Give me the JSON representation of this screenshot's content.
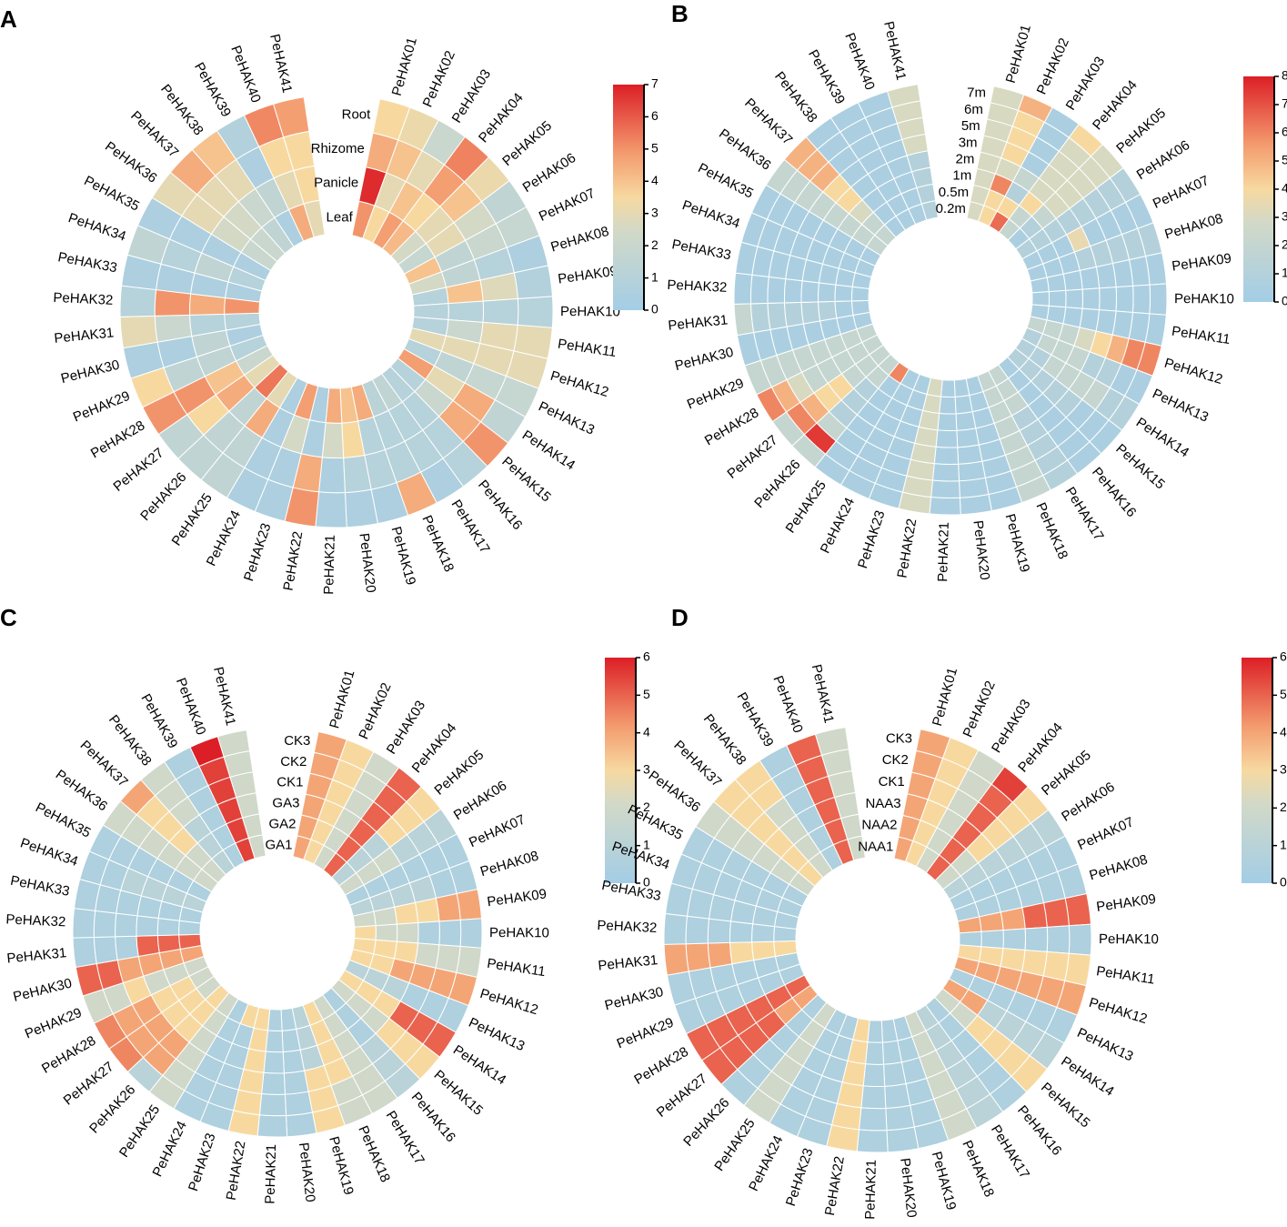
{
  "colors": {
    "low": "#a3cde6",
    "mid": "#f7f7c5",
    "mid2": "#f6cc8f",
    "high": "#dc1f26",
    "cell_stroke": "#ffffff"
  },
  "genes": [
    "PeHAK01",
    "PeHAK02",
    "PeHAK03",
    "PeHAK04",
    "PeHAK05",
    "PeHAK06",
    "PeHAK07",
    "PeHAK08",
    "PeHAK09",
    "PeHAK10",
    "PeHAK11",
    "PeHAK12",
    "PeHAK13",
    "PeHAK14",
    "PeHAK15",
    "PeHAK16",
    "PeHAK17",
    "PeHAK18",
    "PeHAK19",
    "PeHAK20",
    "PeHAK21",
    "PeHAK22",
    "PeHAK23",
    "PeHAK24",
    "PeHAK25",
    "PeHAK26",
    "PeHAK27",
    "PeHAK28",
    "PeHAK29",
    "PeHAK30",
    "PeHAK31",
    "PeHAK32",
    "PeHAK33",
    "PeHAK34",
    "PeHAK35",
    "PeHAK36",
    "PeHAK37",
    "PeHAK38",
    "PeHAK39",
    "PeHAK40",
    "PeHAK41"
  ],
  "chart_data": [
    {
      "type": "heatmap",
      "panel": "A",
      "rings": [
        "Root",
        "Rhizome",
        "Panicle",
        "Leaf"
      ],
      "scale": {
        "min": 0,
        "max": 7,
        "ticks": [
          0,
          1,
          2,
          3,
          4,
          5,
          6,
          7
        ]
      },
      "values": [
        [
          3.5,
          4.5,
          6.8,
          5.0
        ],
        [
          3.2,
          4.0,
          3.0,
          3.5
        ],
        [
          2.0,
          3.0,
          4.0,
          4.8
        ],
        [
          5.3,
          4.8,
          3.5,
          4.2
        ],
        [
          3.2,
          4.0,
          3.0,
          2.5
        ],
        [
          1.5,
          2.5,
          3.0,
          1.8
        ],
        [
          1.8,
          2.0,
          1.5,
          4.0
        ],
        [
          0.5,
          1.0,
          1.5,
          2.5
        ],
        [
          0.8,
          2.8,
          4.0,
          1.0
        ],
        [
          1.0,
          1.0,
          1.0,
          1.0
        ],
        [
          3.0,
          3.0,
          2.0,
          1.0
        ],
        [
          3.0,
          3.0,
          3.0,
          3.0
        ],
        [
          1.8,
          1.8,
          1.5,
          1.0
        ],
        [
          1.5,
          4.5,
          3.0,
          4.8
        ],
        [
          5.0,
          4.5,
          2.0,
          1.0
        ],
        [
          1.0,
          1.0,
          1.0,
          1.0
        ],
        [
          0.5,
          1.0,
          1.0,
          1.5
        ],
        [
          4.5,
          1.0,
          1.0,
          1.2
        ],
        [
          0.5,
          1.0,
          1.0,
          4.5
        ],
        [
          0.5,
          1.0,
          3.5,
          4.0
        ],
        [
          0.5,
          0.5,
          2.5,
          4.5
        ],
        [
          5.0,
          4.5,
          0.5,
          0.5
        ],
        [
          0.5,
          0.5,
          2.5,
          4.8
        ],
        [
          0.5,
          0.5,
          0.5,
          0.5
        ],
        [
          1.5,
          1.5,
          4.5,
          3.0
        ],
        [
          1.5,
          1.5,
          1.5,
          5.5
        ],
        [
          1.5,
          3.5,
          4.5,
          3.0
        ],
        [
          5.0,
          5.0,
          4.0,
          2.0
        ],
        [
          3.5,
          1.5,
          1.5,
          1.0
        ],
        [
          0.5,
          0.5,
          1.5,
          0.5
        ],
        [
          3.0,
          2.0,
          1.0,
          1.0
        ],
        [
          1.0,
          5.0,
          4.5,
          5.0
        ],
        [
          0.5,
          0.5,
          0.5,
          0.5
        ],
        [
          1.5,
          1.0,
          1.5,
          1.0
        ],
        [
          0.5,
          0.5,
          0.5,
          0.5
        ],
        [
          3.0,
          3.0,
          2.5,
          2.0
        ],
        [
          4.5,
          3.0,
          2.5,
          2.0
        ],
        [
          4.0,
          3.0,
          2.0,
          1.5
        ],
        [
          0.8,
          0.5,
          1.5,
          0.5
        ],
        [
          5.2,
          3.5,
          3.0,
          4.5
        ],
        [
          4.8,
          3.5,
          3.5,
          3.0
        ]
      ]
    },
    {
      "type": "heatmap",
      "panel": "B",
      "rings": [
        "7m",
        "6m",
        "5m",
        "3m",
        "2m",
        "1m",
        "0.5m",
        "0.2m"
      ],
      "scale": {
        "min": 0,
        "max": 8,
        "ticks": [
          0,
          1,
          2,
          3,
          4,
          5,
          6,
          7,
          8
        ]
      },
      "values": [
        [
          3,
          3,
          3,
          3,
          3,
          3,
          3,
          3
        ],
        [
          5,
          4,
          4,
          4,
          3,
          6,
          4,
          4
        ],
        [
          0.5,
          0.5,
          0.5,
          0.5,
          2,
          1,
          4,
          6.5
        ],
        [
          4,
          3,
          3,
          3,
          3,
          4,
          2,
          2
        ],
        [
          3,
          3,
          3,
          3,
          3,
          2,
          1,
          0.5
        ],
        [
          1,
          1,
          1,
          1,
          1,
          1,
          1,
          1
        ],
        [
          0.5,
          0.5,
          0.5,
          0.5,
          3.5,
          0.5,
          0.5,
          0.5
        ],
        [
          1,
          1,
          1,
          1,
          1,
          0.5,
          0.5,
          0.5
        ],
        [
          0.5,
          0.5,
          0.5,
          0.5,
          0.5,
          0.5,
          0.5,
          0.5
        ],
        [
          0.5,
          0.5,
          0.5,
          0.5,
          0.5,
          0.5,
          0.5,
          0.5
        ],
        [
          0.5,
          0.5,
          0.5,
          0.5,
          0.5,
          0.5,
          0.5,
          0.5
        ],
        [
          6,
          6,
          5,
          4,
          3,
          2,
          2,
          2
        ],
        [
          0.5,
          0.5,
          1,
          1,
          2,
          2,
          2,
          1
        ],
        [
          1,
          1,
          2,
          2,
          2,
          2,
          1,
          1
        ],
        [
          0.5,
          0.5,
          0.5,
          1,
          1,
          1,
          1,
          1
        ],
        [
          0.5,
          0.5,
          0.5,
          0.5,
          0.5,
          0.5,
          0.5,
          0.5
        ],
        [
          1,
          1,
          1,
          1,
          1,
          2,
          2,
          2
        ],
        [
          2,
          2,
          2,
          2,
          2,
          2,
          2,
          2
        ],
        [
          0.5,
          0.5,
          0.5,
          0.5,
          0.5,
          0.5,
          0.5,
          0.5
        ],
        [
          0.5,
          0.5,
          0.5,
          0.5,
          0.5,
          0.5,
          0.5,
          0.5
        ],
        [
          0.5,
          0.5,
          0.5,
          0.5,
          0.5,
          0.5,
          0.5,
          0.5
        ],
        [
          3,
          3,
          3,
          3,
          3,
          3,
          3,
          3
        ],
        [
          0.5,
          0.5,
          0.5,
          0.5,
          0.5,
          0.5,
          0.5,
          0.5
        ],
        [
          0.5,
          0.5,
          0.5,
          0.5,
          0.5,
          0.5,
          0.5,
          0.5
        ],
        [
          0.5,
          0.5,
          0.5,
          0.5,
          0.5,
          0.5,
          0.5,
          6
        ],
        [
          2,
          7.5,
          2,
          1,
          1,
          1,
          2,
          2
        ],
        [
          2,
          6,
          5,
          4,
          4,
          2,
          2,
          2
        ],
        [
          6,
          5,
          3,
          2,
          2,
          2,
          2,
          2
        ],
        [
          2,
          2,
          2,
          2,
          2,
          2,
          2,
          2
        ],
        [
          0.5,
          0.5,
          0.5,
          0.5,
          0.5,
          0.5,
          0.5,
          0.5
        ],
        [
          2,
          1,
          1,
          1,
          1,
          1,
          0.5,
          0.5
        ],
        [
          0.5,
          0.5,
          0.5,
          0.5,
          0.5,
          0.5,
          0.5,
          0.5
        ],
        [
          0.5,
          0.5,
          0.5,
          0.5,
          0.5,
          0.5,
          0.5,
          0.5
        ],
        [
          0.5,
          0.5,
          0.5,
          0.5,
          0.5,
          0.5,
          0.5,
          0.5
        ],
        [
          0.5,
          0.5,
          0.5,
          0.5,
          0.5,
          0.5,
          0.5,
          0.5
        ],
        [
          2,
          2,
          2,
          2,
          2,
          2,
          2,
          2
        ],
        [
          5,
          5,
          5,
          4,
          4,
          3,
          2,
          2
        ],
        [
          0.5,
          0.5,
          0.5,
          0.5,
          0.5,
          0.5,
          0.5,
          0.5
        ],
        [
          0.5,
          0.5,
          0.5,
          0.5,
          0.5,
          0.5,
          0.5,
          0.5
        ],
        [
          0.5,
          0.5,
          0.5,
          0.5,
          0.5,
          0.5,
          0.5,
          0.5
        ],
        [
          3,
          3,
          3,
          3,
          1,
          1,
          1,
          1
        ]
      ]
    },
    {
      "type": "heatmap",
      "panel": "C",
      "rings": [
        "CK3",
        "CK2",
        "CK1",
        "GA3",
        "GA2",
        "GA1"
      ],
      "scale": {
        "min": 0,
        "max": 6,
        "ticks": [
          0,
          1,
          2,
          3,
          4,
          5,
          6
        ]
      },
      "values": [
        [
          4,
          4,
          4,
          4,
          4,
          4
        ],
        [
          3,
          3,
          3,
          3,
          3,
          3
        ],
        [
          2,
          2,
          2,
          2,
          2,
          2
        ],
        [
          5,
          5,
          5,
          5,
          5,
          5
        ],
        [
          3,
          3,
          3,
          1,
          1,
          1
        ],
        [
          1,
          1,
          1,
          2,
          2,
          2
        ],
        [
          0.5,
          0.5,
          0.5,
          0.5,
          0.5,
          0.5
        ],
        [
          0.5,
          0.5,
          1,
          1,
          1,
          1
        ],
        [
          4,
          4,
          3,
          3,
          2,
          2
        ],
        [
          0.5,
          0.5,
          0.5,
          2,
          2,
          3
        ],
        [
          2,
          2,
          2,
          3,
          3,
          3
        ],
        [
          4,
          4,
          4,
          4,
          3,
          3
        ],
        [
          0.5,
          0.5,
          0.5,
          1,
          1,
          1
        ],
        [
          5,
          5,
          5,
          3,
          3,
          3
        ],
        [
          3,
          3,
          3,
          2,
          2,
          2
        ],
        [
          1,
          1,
          1,
          0.5,
          0.5,
          0.5
        ],
        [
          2,
          2,
          2,
          2,
          2,
          2
        ],
        [
          2,
          2,
          3,
          3,
          3,
          3
        ],
        [
          3,
          3,
          3,
          1,
          1,
          1
        ],
        [
          0.5,
          0.5,
          0.5,
          0.5,
          0.5,
          0.5
        ],
        [
          0.5,
          0.5,
          0.5,
          0.5,
          0.5,
          0.5
        ],
        [
          3,
          3,
          3,
          3,
          3,
          3
        ],
        [
          0.5,
          0.5,
          0.5,
          0.5,
          0.5,
          3
        ],
        [
          0.5,
          0.5,
          0.5,
          0.5,
          0.5,
          0.5
        ],
        [
          2,
          2,
          2,
          2,
          2,
          2
        ],
        [
          1,
          4,
          4,
          3,
          3,
          3
        ],
        [
          4.5,
          4,
          4,
          3,
          3,
          2
        ],
        [
          4.5,
          4,
          4,
          3,
          3,
          2
        ],
        [
          2,
          2,
          3,
          2,
          2,
          2
        ],
        [
          5,
          5,
          4,
          4,
          4,
          4
        ],
        [
          0.5,
          0.5,
          0.5,
          5,
          5,
          5
        ],
        [
          0.5,
          0.5,
          0.5,
          0.5,
          0.5,
          0.5
        ],
        [
          0.5,
          0.5,
          0.5,
          0.5,
          0.5,
          0.5
        ],
        [
          0.5,
          0.5,
          1,
          1,
          1,
          1
        ],
        [
          0.5,
          0.5,
          0.5,
          0.5,
          0.5,
          0.5
        ],
        [
          2,
          2,
          2,
          2,
          2,
          2
        ],
        [
          4,
          3,
          3,
          3,
          2,
          2
        ],
        [
          2,
          2,
          2,
          1,
          1,
          1
        ],
        [
          0.5,
          0.5,
          0.5,
          0.5,
          0.5,
          0.5
        ],
        [
          6,
          5.5,
          5.5,
          5.5,
          5.5,
          5.5
        ],
        [
          2,
          2,
          2,
          2,
          2,
          2
        ]
      ]
    },
    {
      "type": "heatmap",
      "panel": "D",
      "rings": [
        "CK3",
        "CK2",
        "CK1",
        "NAA3",
        "NAA2",
        "NAA1"
      ],
      "scale": {
        "min": 0,
        "max": 6,
        "ticks": [
          0,
          1,
          2,
          3,
          4,
          5,
          6
        ]
      },
      "values": [
        [
          4,
          4,
          4,
          4,
          4,
          4
        ],
        [
          3,
          3,
          3,
          3,
          3,
          3
        ],
        [
          2,
          2,
          2,
          2,
          2,
          2
        ],
        [
          5.5,
          5,
          5,
          5,
          5,
          5
        ],
        [
          3,
          3,
          3,
          3,
          2,
          2
        ],
        [
          1,
          1,
          1,
          1,
          1,
          1
        ],
        [
          0.5,
          0.5,
          0.5,
          0.5,
          0.5,
          0.5
        ],
        [
          0.5,
          0.5,
          0.5,
          0.5,
          0.5,
          0.5
        ],
        [
          5,
          5,
          5,
          4,
          4,
          4
        ],
        [
          0.5,
          0.5,
          0.5,
          0.5,
          0.5,
          0.5
        ],
        [
          3,
          3,
          3,
          3,
          3,
          3
        ],
        [
          4,
          4,
          4,
          4,
          4,
          4
        ],
        [
          0.5,
          0.5,
          0.5,
          0.5,
          0.5,
          0.5
        ],
        [
          1,
          1,
          1,
          1,
          4,
          4
        ],
        [
          3,
          3,
          3,
          3,
          2,
          2
        ],
        [
          0.5,
          0.5,
          0.5,
          0.5,
          0.5,
          0.5
        ],
        [
          1,
          1,
          1,
          1,
          1,
          1
        ],
        [
          2,
          2,
          2,
          2,
          2,
          2
        ],
        [
          0.5,
          0.5,
          0.5,
          0.5,
          0.5,
          0.5
        ],
        [
          0.5,
          0.5,
          0.5,
          0.5,
          0.5,
          0.5
        ],
        [
          0.5,
          0.5,
          0.5,
          0.5,
          0.5,
          0.5
        ],
        [
          3,
          3,
          3,
          3,
          3,
          3
        ],
        [
          0.5,
          0.5,
          0.5,
          0.5,
          0.5,
          0.5
        ],
        [
          0.5,
          0.5,
          0.5,
          0.5,
          0.5,
          0.5
        ],
        [
          2,
          2,
          2,
          2,
          2,
          2
        ],
        [
          0.5,
          0.5,
          0.5,
          0.5,
          0.5,
          0.5
        ],
        [
          5,
          5,
          5,
          5,
          4,
          4
        ],
        [
          5,
          5,
          5,
          5,
          5,
          5
        ],
        [
          0.5,
          0.5,
          0.5,
          0.5,
          0.5,
          0.5
        ],
        [
          0.5,
          0.5,
          0.5,
          0.5,
          0.5,
          0.5
        ],
        [
          4,
          4,
          4,
          3,
          3,
          3
        ],
        [
          0.5,
          0.5,
          0.5,
          0.5,
          0.5,
          0.5
        ],
        [
          0.5,
          0.5,
          0.5,
          0.5,
          0.5,
          0.5
        ],
        [
          0.5,
          0.5,
          0.5,
          0.5,
          0.5,
          0.5
        ],
        [
          0.5,
          0.5,
          0.5,
          0.5,
          0.5,
          0.5
        ],
        [
          2,
          2,
          2,
          2,
          2,
          2
        ],
        [
          3,
          3,
          3,
          3,
          3,
          3
        ],
        [
          3,
          3,
          2,
          2,
          2,
          2
        ],
        [
          0.5,
          0.5,
          0.5,
          0.5,
          0.5,
          0.5
        ],
        [
          5,
          5,
          5,
          5,
          5,
          5
        ],
        [
          2,
          2,
          2,
          2,
          2,
          2
        ]
      ]
    }
  ]
}
